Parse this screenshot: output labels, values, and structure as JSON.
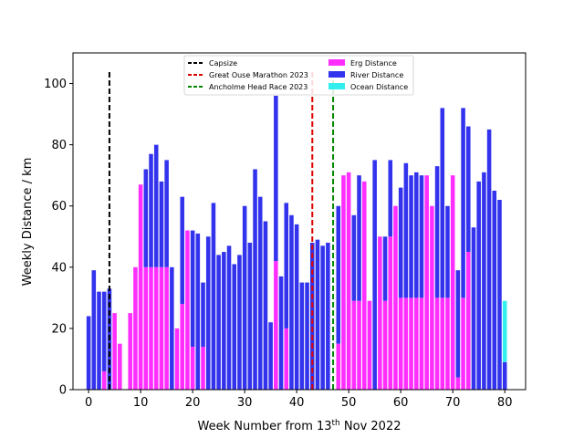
{
  "chart_data": {
    "type": "bar",
    "stacked": true,
    "xlabel_prefix": "Week Number from 13",
    "xlabel_sup": "th",
    "xlabel_suffix": " Nov 2022",
    "ylabel": "Weekly Distance / km",
    "xlim": [
      -3,
      84
    ],
    "ylim": [
      0,
      110
    ],
    "xticks": [
      0,
      10,
      20,
      30,
      40,
      50,
      60,
      70,
      80
    ],
    "yticks": [
      0,
      20,
      40,
      60,
      80,
      100
    ],
    "grid": false,
    "legend_position": "top-center",
    "series": [
      {
        "name": "Erg Distance",
        "color": "#ff2eff",
        "values": [
          0,
          0,
          0,
          6,
          0,
          25,
          15,
          0,
          25,
          40,
          67,
          40,
          40,
          40,
          40,
          40,
          0,
          20,
          28,
          52,
          14,
          0,
          14,
          0,
          0,
          0,
          0,
          0,
          0,
          0,
          0,
          0,
          0,
          0,
          0,
          0,
          42,
          0,
          20,
          0,
          0,
          0,
          0,
          0,
          0,
          0,
          0,
          0,
          15,
          70,
          71,
          29,
          29,
          68,
          29,
          0,
          50,
          29,
          50,
          60,
          30,
          30,
          30,
          30,
          30,
          70,
          60,
          30,
          30,
          30,
          70,
          4,
          30,
          45,
          0,
          0,
          0,
          0,
          0,
          0,
          0
        ]
      },
      {
        "name": "River Distance",
        "color": "#3333ee",
        "values": [
          24,
          39,
          32,
          26,
          33,
          0,
          0,
          0,
          0,
          0,
          0,
          32,
          37,
          40,
          28,
          35,
          40,
          0,
          35,
          0,
          38,
          51,
          21,
          50,
          61,
          44,
          45,
          47,
          41,
          44,
          60,
          48,
          72,
          63,
          55,
          22,
          54,
          37,
          41,
          57,
          54,
          35,
          35,
          48,
          49,
          47,
          48,
          0,
          45,
          0,
          0,
          28,
          41,
          0,
          0,
          75,
          0,
          21,
          25,
          0,
          36,
          44,
          40,
          41,
          40,
          0,
          0,
          43,
          62,
          30,
          0,
          35,
          62,
          41,
          53,
          68,
          71,
          85,
          65,
          62,
          9
        ]
      },
      {
        "name": "Ocean Distance",
        "color": "#33eeee",
        "values": [
          0,
          0,
          0,
          0,
          0,
          0,
          0,
          0,
          0,
          0,
          0,
          0,
          0,
          0,
          0,
          0,
          0,
          0,
          0,
          0,
          0,
          0,
          0,
          0,
          0,
          0,
          0,
          0,
          0,
          0,
          0,
          0,
          0,
          0,
          0,
          0,
          0,
          0,
          0,
          0,
          0,
          0,
          0,
          0,
          0,
          0,
          0,
          0,
          0,
          0,
          0,
          0,
          0,
          0,
          0,
          0,
          0,
          0,
          0,
          0,
          0,
          0,
          0,
          0,
          0,
          0,
          0,
          0,
          0,
          0,
          0,
          0,
          0,
          0,
          0,
          0,
          0,
          0,
          0,
          0,
          20
        ]
      }
    ],
    "events": [
      {
        "name": "Capsize",
        "x": 4,
        "color": "#000000"
      },
      {
        "name": "Great Ouse Marathon 2023",
        "x": 43,
        "color": "#dd0000"
      },
      {
        "name": "Ancholme Head Race 2023",
        "x": 47,
        "color": "#008800"
      }
    ]
  }
}
